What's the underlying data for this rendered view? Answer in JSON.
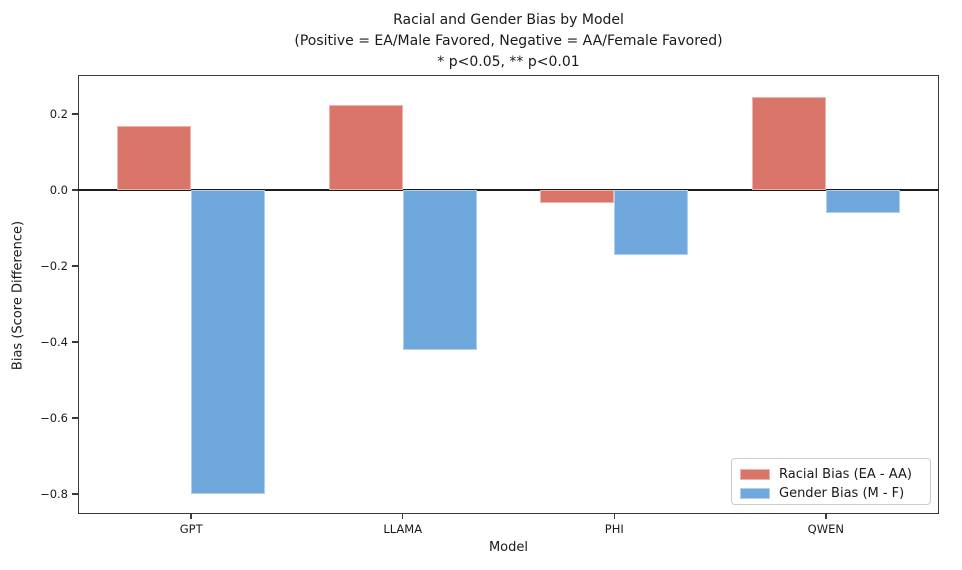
{
  "chart_data": {
    "type": "bar",
    "title": "Racial and Gender Bias by Model",
    "subtitle": "(Positive = EA/Male Favored, Negative = AA/Female Favored)",
    "significance_note": "* p<0.05, ** p<0.01",
    "xlabel": "Model",
    "ylabel": "Bias (Score Difference)",
    "categories": [
      "GPT",
      "LLAMA",
      "PHI",
      "QWEN"
    ],
    "series": [
      {
        "key": "racial",
        "name": "Racial Bias (EA - AA)",
        "color": "#D97669",
        "values": [
          0.17,
          0.225,
          -0.035,
          0.245
        ]
      },
      {
        "key": "gender",
        "name": "Gender Bias (M - F)",
        "color": "#6FA8DC",
        "values": [
          -0.8,
          -0.42,
          -0.17,
          -0.06
        ]
      }
    ],
    "yticks": [
      {
        "label": "0.2",
        "value": 0.2
      },
      {
        "label": "0.0",
        "value": 0.0
      },
      {
        "label": "−0.2",
        "value": -0.2
      },
      {
        "label": "−0.4",
        "value": -0.4
      },
      {
        "label": "−0.6",
        "value": -0.6
      },
      {
        "label": "−0.8",
        "value": -0.8
      }
    ],
    "ylim": [
      -0.853,
      0.303
    ],
    "xlim": [
      -0.535,
      3.535
    ],
    "bar_width": 0.35,
    "grid": false,
    "zero_line": true,
    "legend_position": "lower right"
  }
}
